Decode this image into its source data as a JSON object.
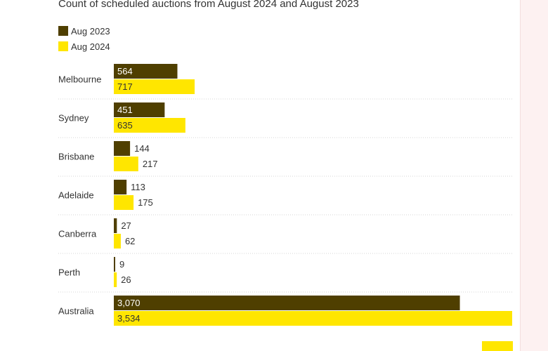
{
  "subtitle": "Count of scheduled auctions from August 2024 and August 2023",
  "colors": {
    "aug2023": "#4f3f00",
    "aug2024": "#ffe600",
    "grid": "#d6d6d6",
    "label_light": "#ffffff",
    "label_dark": "#333333"
  },
  "chart_data": {
    "type": "bar",
    "orientation": "horizontal",
    "title": "",
    "subtitle": "Count of scheduled auctions from August 2024 and August 2023",
    "xlabel": "",
    "ylabel": "",
    "legend_position": "top-left",
    "grid": false,
    "xlim": [
      0,
      3534
    ],
    "categories": [
      "Melbourne",
      "Sydney",
      "Brisbane",
      "Adelaide",
      "Canberra",
      "Perth",
      "Australia"
    ],
    "series": [
      {
        "name": "Aug 2023",
        "color": "#4f3f00",
        "values": [
          564,
          451,
          144,
          113,
          27,
          9,
          3070
        ],
        "labels": [
          "564",
          "451",
          "144",
          "113",
          "27",
          "9",
          "3,070"
        ]
      },
      {
        "name": "Aug 2024",
        "color": "#ffe600",
        "values": [
          717,
          635,
          217,
          175,
          62,
          26,
          3534
        ],
        "labels": [
          "717",
          "635",
          "217",
          "175",
          "62",
          "26",
          "3,534"
        ]
      }
    ]
  }
}
